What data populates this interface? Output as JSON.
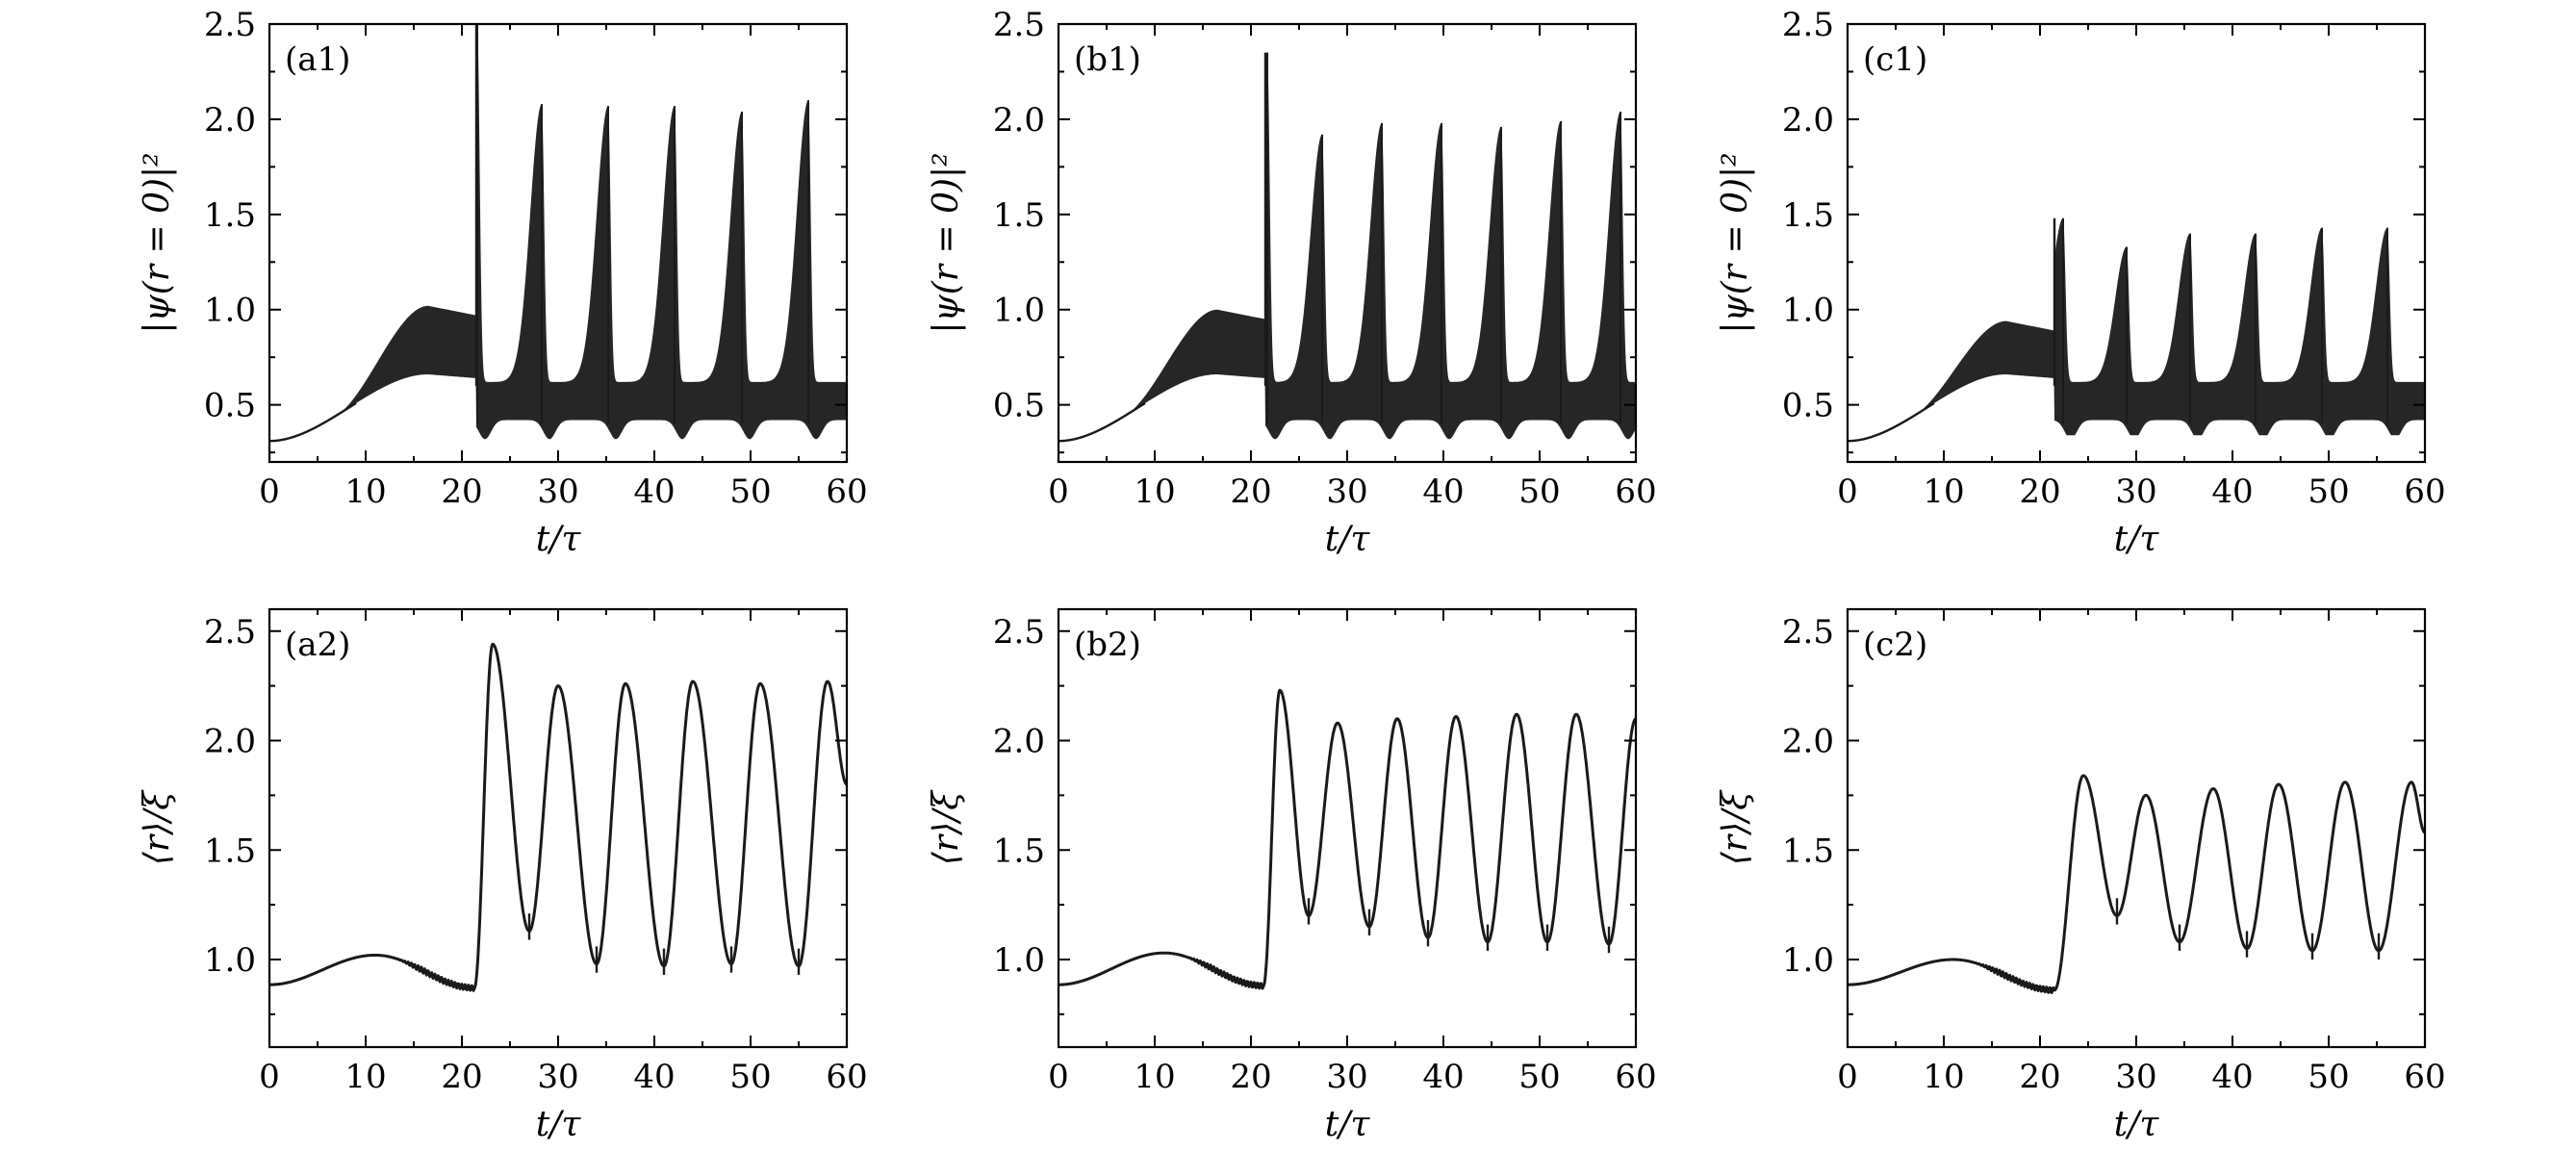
{
  "chart_data": [
    {
      "id": "a1",
      "type": "line",
      "label": "(a1)",
      "kind": "density",
      "xlabel": "t/τ",
      "ylabel": "|ψ(r = 0)|²",
      "xlim": [
        0,
        60
      ],
      "ylim": [
        0.2,
        2.5
      ],
      "xticks": [
        0,
        10,
        20,
        30,
        40,
        50,
        60
      ],
      "yticks": [
        0.5,
        1.0,
        1.5,
        2.0,
        2.5
      ],
      "yticklabels": [
        "0.5",
        "1.0",
        "1.5",
        "2.0",
        "2.5"
      ],
      "initial": 0.31,
      "ramp_peak_time": 16.5,
      "ramp_low": 0.66,
      "ramp_high": 1.02,
      "collapse_time": 21.5,
      "collapse_max": 2.5,
      "trough_min": 0.3,
      "burst_times": [
        21.6,
        28.3,
        35.2,
        42.1,
        49.1,
        56.0
      ],
      "burst_max": [
        2.5,
        2.08,
        2.07,
        2.07,
        2.04,
        2.1
      ]
    },
    {
      "id": "b1",
      "type": "line",
      "label": "(b1)",
      "kind": "density",
      "xlabel": "t/τ",
      "ylabel": "|ψ(r = 0)|²",
      "xlim": [
        0,
        60
      ],
      "ylim": [
        0.2,
        2.5
      ],
      "xticks": [
        0,
        10,
        20,
        30,
        40,
        50,
        60
      ],
      "yticks": [
        0.5,
        1.0,
        1.5,
        2.0,
        2.5
      ],
      "yticklabels": [
        "0.5",
        "1.0",
        "1.5",
        "2.0",
        "2.5"
      ],
      "initial": 0.31,
      "ramp_peak_time": 16.5,
      "ramp_low": 0.66,
      "ramp_high": 1.0,
      "collapse_time": 21.5,
      "collapse_max": 2.35,
      "trough_min": 0.32,
      "burst_times": [
        21.7,
        27.4,
        33.6,
        39.8,
        46.0,
        52.2,
        58.4
      ],
      "burst_max": [
        2.35,
        1.92,
        1.98,
        1.98,
        1.96,
        1.99,
        2.04
      ]
    },
    {
      "id": "c1",
      "type": "line",
      "label": "(c1)",
      "kind": "density",
      "xlabel": "t/τ",
      "ylabel": "|ψ(r = 0)|²",
      "xlim": [
        0,
        60
      ],
      "ylim": [
        0.2,
        2.5
      ],
      "xticks": [
        0,
        10,
        20,
        30,
        40,
        50,
        60
      ],
      "yticks": [
        0.5,
        1.0,
        1.5,
        2.0,
        2.5
      ],
      "yticklabels": [
        "0.5",
        "1.0",
        "1.5",
        "2.0",
        "2.5"
      ],
      "initial": 0.31,
      "ramp_peak_time": 16.5,
      "ramp_low": 0.66,
      "ramp_high": 0.94,
      "collapse_time": 21.5,
      "collapse_max": 1.48,
      "trough_min": 0.34,
      "burst_times": [
        22.4,
        29.0,
        35.6,
        42.4,
        49.3,
        56.1
      ],
      "burst_max": [
        1.48,
        1.33,
        1.4,
        1.4,
        1.43,
        1.43
      ]
    },
    {
      "id": "a2",
      "type": "line",
      "label": "(a2)",
      "kind": "radius",
      "xlabel": "t/τ",
      "ylabel": "⟨r⟩/ξ",
      "xlim": [
        0,
        60
      ],
      "ylim": [
        0.6,
        2.6
      ],
      "xticks": [
        0,
        10,
        20,
        30,
        40,
        50,
        60
      ],
      "yticks": [
        1.0,
        1.5,
        2.0,
        2.5
      ],
      "yticklabels": [
        "1.0",
        "1.5",
        "2.0",
        "2.5"
      ],
      "initial": 0.885,
      "hump_time": 11,
      "hump_value": 1.02,
      "jump_time": 21.3,
      "pre_jump": 0.87,
      "peaks": [
        [
          23.2,
          2.44
        ],
        [
          30.0,
          2.25
        ],
        [
          37.0,
          2.26
        ],
        [
          44.0,
          2.27
        ],
        [
          51.0,
          2.26
        ],
        [
          58.0,
          2.27
        ]
      ],
      "troughs": [
        [
          27.0,
          1.13
        ],
        [
          34.0,
          0.98
        ],
        [
          41.0,
          0.97
        ],
        [
          48.0,
          0.98
        ],
        [
          55.0,
          0.97
        ]
      ],
      "end_value": 1.8
    },
    {
      "id": "b2",
      "type": "line",
      "label": "(b2)",
      "kind": "radius",
      "xlabel": "t/τ",
      "ylabel": "⟨r⟩/ξ",
      "xlim": [
        0,
        60
      ],
      "ylim": [
        0.6,
        2.6
      ],
      "xticks": [
        0,
        10,
        20,
        30,
        40,
        50,
        60
      ],
      "yticks": [
        1.0,
        1.5,
        2.0,
        2.5
      ],
      "yticklabels": [
        "1.0",
        "1.5",
        "2.0",
        "2.5"
      ],
      "initial": 0.885,
      "hump_time": 11,
      "hump_value": 1.03,
      "jump_time": 21.3,
      "pre_jump": 0.88,
      "peaks": [
        [
          23.0,
          2.23
        ],
        [
          29.0,
          2.08
        ],
        [
          35.2,
          2.1
        ],
        [
          41.3,
          2.11
        ],
        [
          47.6,
          2.12
        ],
        [
          53.8,
          2.12
        ]
      ],
      "troughs": [
        [
          26.0,
          1.2
        ],
        [
          32.3,
          1.15
        ],
        [
          38.4,
          1.1
        ],
        [
          44.6,
          1.08
        ],
        [
          50.8,
          1.08
        ],
        [
          57.2,
          1.07
        ]
      ],
      "end_value": 2.1
    },
    {
      "id": "c2",
      "type": "line",
      "label": "(c2)",
      "kind": "radius",
      "xlabel": "t/τ",
      "ylabel": "⟨r⟩/ξ",
      "xlim": [
        0,
        60
      ],
      "ylim": [
        0.6,
        2.6
      ],
      "xticks": [
        0,
        10,
        20,
        30,
        40,
        50,
        60
      ],
      "yticks": [
        1.0,
        1.5,
        2.0,
        2.5
      ],
      "yticklabels": [
        "1.0",
        "1.5",
        "2.0",
        "2.5"
      ],
      "initial": 0.885,
      "hump_time": 11,
      "hump_value": 1.0,
      "jump_time": 21.5,
      "pre_jump": 0.86,
      "peaks": [
        [
          24.5,
          1.84
        ],
        [
          31.0,
          1.75
        ],
        [
          38.0,
          1.78
        ],
        [
          44.8,
          1.8
        ],
        [
          51.7,
          1.81
        ],
        [
          58.6,
          1.81
        ]
      ],
      "troughs": [
        [
          28.0,
          1.2
        ],
        [
          34.5,
          1.08
        ],
        [
          41.5,
          1.05
        ],
        [
          48.3,
          1.04
        ],
        [
          55.2,
          1.04
        ]
      ],
      "end_value": 1.58
    }
  ]
}
